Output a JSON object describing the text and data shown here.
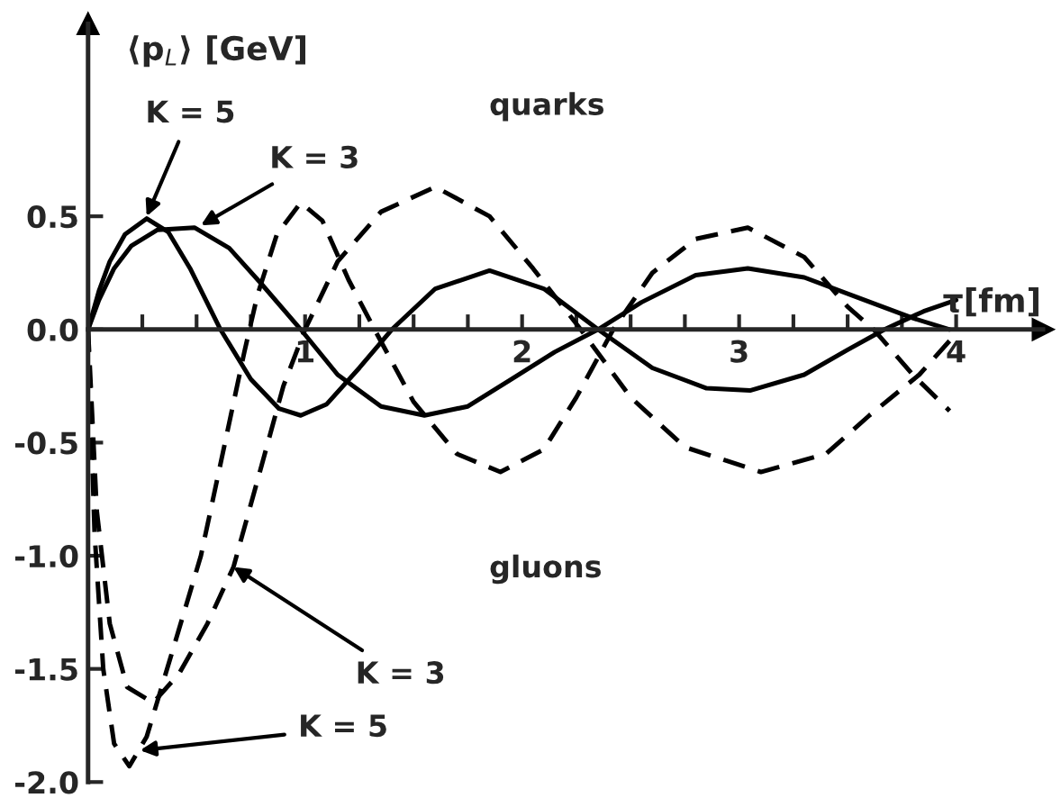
{
  "chart_data": {
    "type": "line",
    "xlabel": "τ[fm]",
    "ylabel": "⟨p$_{L}$⟩ [GeV]",
    "xlim": [
      0,
      4.4
    ],
    "ylim": [
      -2.0,
      1.35
    ],
    "xticks": [
      {
        "value": 0.25,
        "label": null
      },
      {
        "value": 0.5,
        "label": null
      },
      {
        "value": 0.75,
        "label": null
      },
      1,
      {
        "value": 1.25,
        "label": null
      },
      {
        "value": 1.5,
        "label": null
      },
      {
        "value": 1.75,
        "label": null
      },
      2,
      {
        "value": 2.25,
        "label": null
      },
      {
        "value": 2.5,
        "label": null
      },
      {
        "value": 2.75,
        "label": null
      },
      3,
      {
        "value": 3.25,
        "label": null
      },
      {
        "value": 3.5,
        "label": null
      },
      {
        "value": 3.75,
        "label": null
      },
      4
    ],
    "yticks": [
      {
        "value": -2.0,
        "label": "-2.0"
      },
      {
        "value": -1.5,
        "label": "-1.5"
      },
      {
        "value": -1.0,
        "label": "-1.0"
      },
      {
        "value": -0.5,
        "label": "-0.5"
      },
      {
        "value": 0.0,
        "label": "0.0"
      },
      {
        "value": 0.5,
        "label": "0.5"
      }
    ],
    "grid": false,
    "legend": false,
    "series": [
      {
        "color": "#000000",
        "line_style": "solid",
        "x": [
          0,
          0.05,
          0.1,
          0.17,
          0.27,
          0.37,
          0.47,
          0.61,
          0.75,
          0.88,
          0.98,
          1.1,
          1.25,
          1.4,
          1.6,
          1.85,
          2.1,
          2.35,
          2.6,
          2.85,
          3.05,
          3.3,
          3.5,
          3.67,
          3.85,
          4.0
        ],
        "values": [
          0,
          0.17,
          0.3,
          0.42,
          0.49,
          0.43,
          0.27,
          0,
          -0.22,
          -0.35,
          -0.38,
          -0.33,
          -0.17,
          0,
          0.18,
          0.26,
          0.18,
          0,
          -0.17,
          -0.26,
          -0.27,
          -0.2,
          -0.09,
          0,
          0.08,
          0.13
        ]
      },
      {
        "color": "#000000",
        "line_style": "solid",
        "x": [
          0,
          0.05,
          0.12,
          0.2,
          0.32,
          0.49,
          0.65,
          0.8,
          0.98,
          1.15,
          1.35,
          1.55,
          1.75,
          1.95,
          2.15,
          2.35,
          2.55,
          2.8,
          3.04,
          3.3,
          3.55,
          3.8,
          3.97
        ],
        "values": [
          0,
          0.13,
          0.27,
          0.37,
          0.44,
          0.45,
          0.36,
          0.2,
          0,
          -0.2,
          -0.34,
          -0.38,
          -0.34,
          -0.22,
          -0.1,
          0,
          0.12,
          0.24,
          0.27,
          0.23,
          0.14,
          0.05,
          0
        ]
      },
      {
        "color": "#000000",
        "line_style": "dashed",
        "x": [
          0,
          0.03,
          0.07,
          0.12,
          0.19,
          0.27,
          0.38,
          0.52,
          0.62,
          0.72,
          0.78,
          0.87,
          0.98,
          1.08,
          1.2,
          1.32,
          1.5,
          1.7,
          1.9,
          2.1,
          2.25,
          2.42,
          2.6,
          2.8,
          3.04,
          3.3,
          3.5,
          3.62,
          3.8,
          3.97
        ],
        "values": [
          0,
          -0.9,
          -1.5,
          -1.83,
          -1.93,
          -1.8,
          -1.45,
          -1.0,
          -0.55,
          -0.1,
          0.15,
          0.42,
          0.56,
          0.48,
          0.22,
          0,
          -0.32,
          -0.55,
          -0.63,
          -0.53,
          -0.3,
          0,
          0.25,
          0.4,
          0.45,
          0.32,
          0.1,
          0,
          -0.2,
          -0.36
        ]
      },
      {
        "color": "#000000",
        "line_style": "dashed",
        "x": [
          0,
          0.04,
          0.1,
          0.18,
          0.3,
          0.42,
          0.55,
          0.67,
          0.8,
          0.9,
          1.0,
          1.15,
          1.35,
          1.6,
          1.85,
          2.05,
          2.27,
          2.5,
          2.75,
          3.1,
          3.4,
          3.6,
          3.83,
          3.97
        ],
        "values": [
          0,
          -0.8,
          -1.3,
          -1.58,
          -1.65,
          -1.52,
          -1.3,
          -1.05,
          -0.6,
          -0.25,
          0,
          0.3,
          0.52,
          0.63,
          0.5,
          0.27,
          0,
          -0.3,
          -0.52,
          -0.63,
          -0.55,
          -0.38,
          -0.2,
          -0.05
        ]
      }
    ],
    "annotations": [
      {
        "text": "quarks"
      },
      {
        "text": "gluons"
      },
      {
        "text": "K = 5",
        "x": 0.27,
        "y": 0.5
      },
      {
        "text": "K = 3",
        "x": 0.52,
        "y": 0.46
      },
      {
        "text": "K = 3",
        "x": 0.67,
        "y": -1.05
      },
      {
        "text": "K = 5",
        "x": 0.24,
        "y": -1.86
      }
    ]
  }
}
